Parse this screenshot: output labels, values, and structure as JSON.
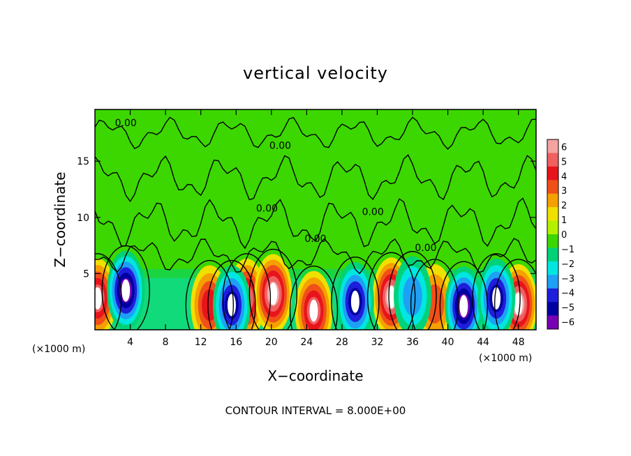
{
  "chart_data": {
    "type": "heatmap",
    "title": "vertical velocity",
    "xlabel": "X−coordinate",
    "ylabel": "Z−coordinate",
    "x_unit_left": "(×1000 m)",
    "x_unit_right": "(×1000 m)",
    "xlim": [
      0,
      50
    ],
    "ylim": [
      0,
      19.6
    ],
    "x_ticks": [
      4,
      8,
      12,
      16,
      20,
      24,
      28,
      32,
      36,
      40,
      44,
      48
    ],
    "x_tick_labels": [
      "4",
      "8",
      "12",
      "16",
      "20",
      "24",
      "28",
      "32",
      "36",
      "40",
      "44",
      "48"
    ],
    "y_ticks": [
      5,
      10,
      15
    ],
    "y_tick_labels": [
      "5",
      "10",
      "15"
    ],
    "colorbar": {
      "min": -6,
      "max": 6,
      "tick_labels": [
        "6",
        "5",
        "4",
        "3",
        "2",
        "1",
        "0",
        "−1",
        "−2",
        "−3",
        "−4",
        "−5",
        "−6"
      ],
      "colors": [
        "#f4a3a0",
        "#f06060",
        "#e8141c",
        "#f05018",
        "#f5a000",
        "#f0e000",
        "#b4f000",
        "#3cd700",
        "#00d278",
        "#00e6e1",
        "#1ea0f5",
        "#1e1edc",
        "#0000a0",
        "#7800b4"
      ]
    },
    "contour_labels": [
      "0.00",
      "0.00",
      "0.00",
      "0.00",
      "0.00",
      "0.00"
    ],
    "updraft_cores": [
      {
        "x": 0.3,
        "z": 2.8,
        "w": 5
      },
      {
        "x": 13,
        "z": 2.2,
        "w": 4
      },
      {
        "x": 17.2,
        "z": 2.8,
        "w": 4.5
      },
      {
        "x": 20.2,
        "z": 3.2,
        "w": 6
      },
      {
        "x": 24.8,
        "z": 1.7,
        "w": 5
      },
      {
        "x": 33.6,
        "z": 2.9,
        "w": 6
      },
      {
        "x": 38.5,
        "z": 2.3,
        "w": 3
      },
      {
        "x": 48,
        "z": 2.3,
        "w": 5.5
      }
    ],
    "downdraft_cores": [
      {
        "x": 3.5,
        "z": 3.5,
        "w": -6
      },
      {
        "x": 15.5,
        "z": 2.2,
        "w": -5
      },
      {
        "x": 29.5,
        "z": 2.5,
        "w": -5
      },
      {
        "x": 36,
        "z": 3.0,
        "w": -3
      },
      {
        "x": 41.8,
        "z": 2.1,
        "w": -6
      },
      {
        "x": 45.5,
        "z": 2.8,
        "w": -5
      }
    ],
    "footer": "CONTOUR INTERVAL = 8.000E+00"
  }
}
